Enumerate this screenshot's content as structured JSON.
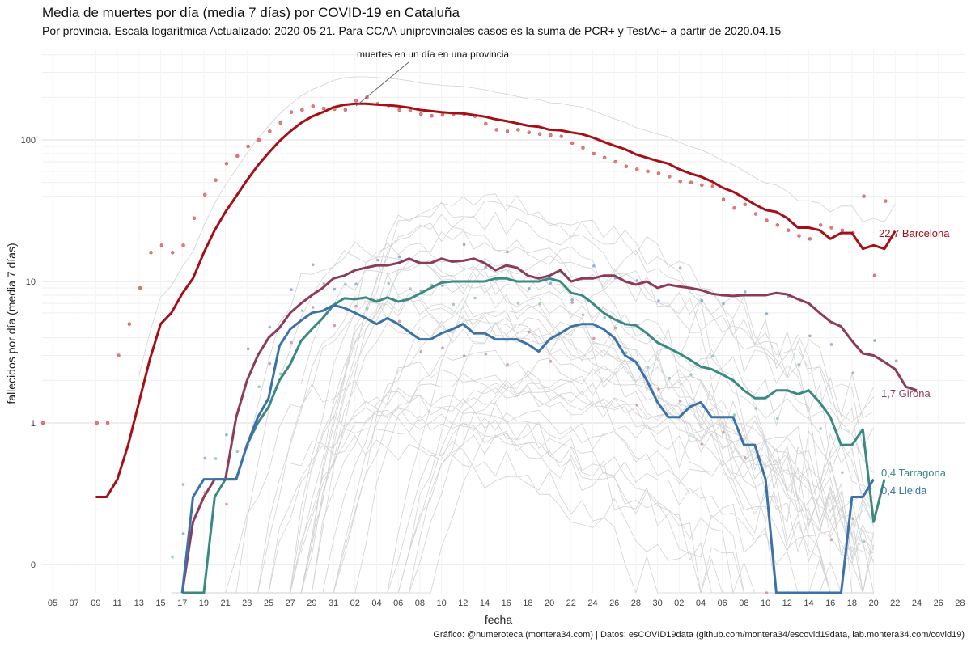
{
  "chart_data": {
    "type": "line",
    "title": "Media de muertes por día (media 7 días) por COVID-19 en Cataluña",
    "subtitle": "Por provincia. Escala logarítmica  Actualizado: 2020-05-21. Para CCAA uniprovinciales casos es la suma de PCR+ y TestAc+ a partir de 2020.04.15",
    "xlabel": "fecha",
    "ylabel": "fallecidos por día (media 7 días)",
    "caption": "Gráfico: @numeroteca (montera34.com) | Datos: esCOVID19data (github.com/montera34/escovid19data, lab.montera34.com/covid19)",
    "annotation": "muertes en un día en una provincia",
    "y_scale": "log",
    "y_ticks": [
      "0",
      "1",
      "10",
      "100"
    ],
    "x_ticks": [
      "05",
      "07",
      "09",
      "11",
      "13",
      "15",
      "17",
      "19",
      "21",
      "23",
      "25",
      "27",
      "29",
      "31",
      "02",
      "04",
      "06",
      "08",
      "10",
      "12",
      "14",
      "16",
      "18",
      "20",
      "22",
      "24",
      "26",
      "28",
      "30",
      "02",
      "04",
      "06",
      "08",
      "10",
      "12",
      "14",
      "16",
      "18",
      "20",
      "22",
      "24",
      "26",
      "28"
    ],
    "grid": true,
    "legend": "direct labels at line ends",
    "colors": {
      "Barcelona": "#a50f15",
      "Girona": "#8e3b5b",
      "Tarragona": "#3a8a82",
      "Lleida": "#3b72a8",
      "background": "#cccccc"
    },
    "start_date": "2020-03-04",
    "series": [
      {
        "name": "Barcelona",
        "end_label": "22,7 Barcelona",
        "values": [
          null,
          null,
          null,
          null,
          0.3,
          0.3,
          0.4,
          0.7,
          1.4,
          2.8,
          5,
          6,
          8.2,
          10.5,
          16,
          23,
          31,
          40,
          52,
          66,
          81,
          98,
          115,
          132,
          146,
          157,
          170,
          177,
          180,
          180,
          178,
          176,
          173,
          169,
          163,
          160,
          157,
          155,
          154,
          150,
          146,
          140,
          136,
          131,
          126,
          124,
          118,
          117,
          113,
          110,
          104,
          97,
          91,
          86,
          79,
          75,
          71,
          68,
          62,
          58,
          55,
          51,
          46,
          43,
          39,
          35,
          32,
          31,
          28,
          24,
          24,
          23,
          20,
          22,
          22,
          17,
          18,
          17,
          22.7
        ],
        "points": [
          1,
          null,
          null,
          null,
          null,
          1,
          1,
          3,
          5,
          9,
          16,
          18,
          16,
          18,
          28,
          41,
          52,
          68,
          77,
          90,
          100,
          115,
          132,
          157,
          163,
          173,
          167,
          165,
          163,
          190,
          200,
          180,
          175,
          163,
          162,
          152,
          148,
          150,
          152,
          152,
          147,
          130,
          118,
          115,
          118,
          113,
          110,
          108,
          106,
          95,
          88,
          80,
          75,
          70,
          65,
          62,
          60,
          58,
          55,
          51,
          50,
          48,
          47,
          38,
          33,
          35,
          30,
          27,
          25,
          23,
          21,
          20,
          25,
          24,
          23,
          22,
          40,
          11,
          37
        ]
      },
      {
        "name": "Girona",
        "end_label": "1,7 Girona",
        "values": [
          null,
          null,
          null,
          null,
          null,
          null,
          null,
          null,
          null,
          null,
          null,
          null,
          0.1,
          0.2,
          0.3,
          0.4,
          0.4,
          1.1,
          2,
          3,
          4,
          4.7,
          6,
          7,
          8,
          9,
          10.5,
          11,
          12,
          12.5,
          13,
          13,
          13.5,
          14.5,
          13.5,
          13.5,
          14.5,
          13.8,
          14,
          14.5,
          13.5,
          12,
          13,
          12.5,
          11,
          10.5,
          11,
          12,
          10,
          10.5,
          10.5,
          11,
          11,
          10,
          9.5,
          10,
          9,
          9.5,
          9.2,
          9,
          8.7,
          8.2,
          8,
          7.9,
          8,
          8,
          8,
          8.3,
          8.1,
          7.5,
          7,
          6,
          5.2,
          4.8,
          3.8,
          3.1,
          3,
          2.7,
          2.4,
          1.8,
          1.7
        ]
      },
      {
        "name": "Tarragona",
        "end_label": "0,4 Tarragona",
        "values": [
          null,
          null,
          null,
          null,
          null,
          null,
          null,
          null,
          null,
          null,
          null,
          null,
          0.1,
          0.1,
          0.1,
          0.3,
          0.4,
          0.4,
          0.7,
          1,
          1.3,
          2,
          2.6,
          3.8,
          4.6,
          5.5,
          6.8,
          7.6,
          7.5,
          7.7,
          7.2,
          7.7,
          7.2,
          7.5,
          8.2,
          9,
          9.8,
          10,
          10,
          10,
          10,
          10.5,
          10.5,
          10,
          10,
          10,
          10.5,
          10,
          8.3,
          8,
          7,
          6,
          5.4,
          5,
          4.9,
          4.3,
          3.7,
          3.4,
          3.1,
          2.8,
          2.5,
          2.4,
          2.2,
          2,
          1.7,
          1.5,
          1.5,
          1.7,
          1.7,
          1.6,
          1.7,
          1.4,
          1.1,
          0.7,
          0.7,
          0.9,
          0.2,
          0.4
        ]
      },
      {
        "name": "Lleida",
        "end_label": "0,4 Lleida",
        "values": [
          null,
          null,
          null,
          null,
          null,
          null,
          null,
          null,
          null,
          null,
          null,
          null,
          0.1,
          0.3,
          0.4,
          0.4,
          0.4,
          0.4,
          0.7,
          1.1,
          1.5,
          3.5,
          4.6,
          5.3,
          6,
          6.2,
          6.8,
          6.5,
          6,
          5.5,
          5,
          5.5,
          5,
          4.4,
          3.9,
          3.9,
          4.3,
          4.6,
          5,
          4.3,
          4.3,
          3.9,
          3.9,
          3.9,
          3.6,
          3.2,
          3.9,
          4.3,
          4.8,
          5,
          5,
          4.6,
          4,
          3,
          2.7,
          2,
          1.4,
          1.1,
          1.1,
          1.3,
          1.4,
          1.1,
          1.1,
          1.1,
          0.7,
          0.7,
          0.4,
          0.1,
          0.05,
          0.05,
          0.1,
          0.1,
          0.1,
          0.1,
          0.3,
          0.3,
          0.4
        ]
      }
    ]
  }
}
